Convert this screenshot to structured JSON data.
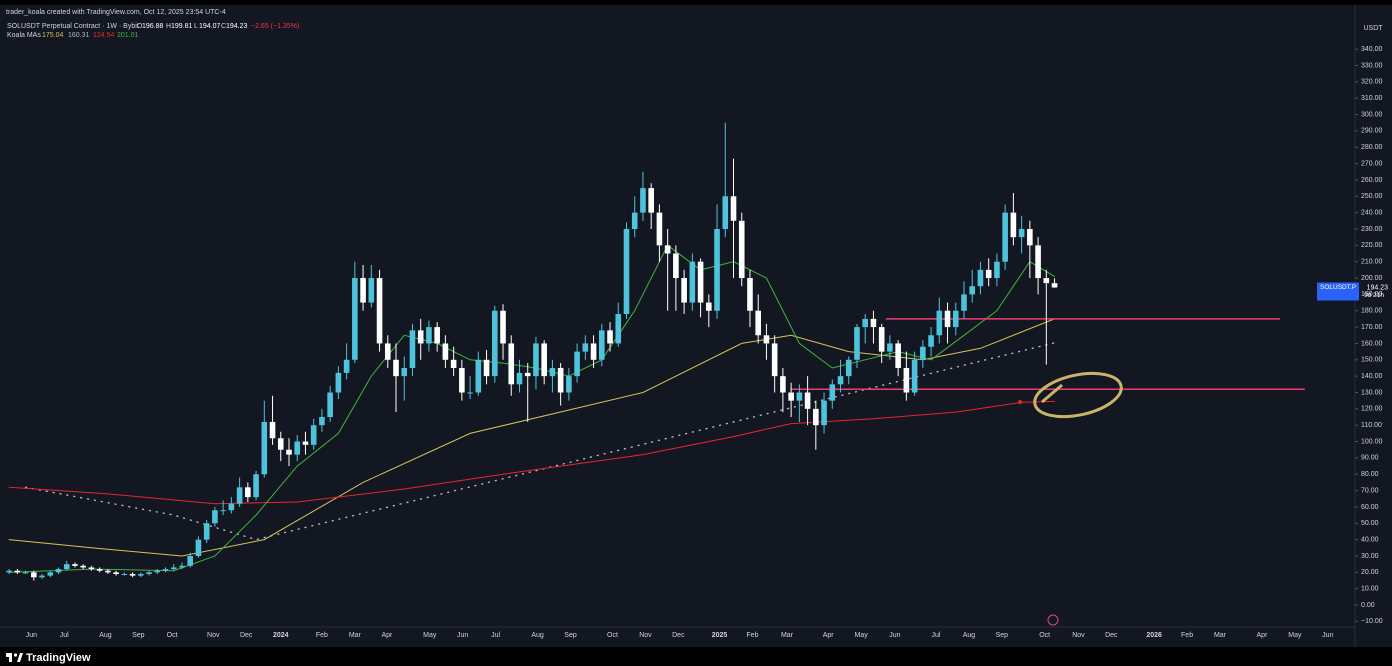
{
  "chart_data": {
    "type": "candlestick",
    "attribution": "trader_koala created with TradingView.com, Oct 12, 2025 23:54 UTC-4",
    "title": "SOLUSDT Perpetual Contract · 1W · Bybit",
    "ohlc_labels": [
      "O",
      "H",
      "L",
      "C"
    ],
    "change": "−2.65 (−1.35%)",
    "indicator": "Koala MAs",
    "currency": "USDT",
    "symbol": "SOLUSDT.P",
    "countdown": "9d 21h",
    "footer": "TradingView",
    "grid": false,
    "xlim": [
      -0.5,
      163.5
    ],
    "ylim": [
      -12.2,
      351.7
    ],
    "xticks": [
      {
        "value": 2.7,
        "label": "Jun"
      },
      {
        "value": 6.7,
        "label": "Jul"
      },
      {
        "value": 11.7,
        "label": "Aug"
      },
      {
        "value": 15.7,
        "label": "Sep"
      },
      {
        "value": 19.8,
        "label": "Oct"
      },
      {
        "value": 24.8,
        "label": "Nov"
      },
      {
        "value": 28.8,
        "label": "Dec"
      },
      {
        "value": 33.0,
        "label": "2024"
      },
      {
        "value": 38.0,
        "label": "Feb"
      },
      {
        "value": 42.0,
        "label": "Mar"
      },
      {
        "value": 45.9,
        "label": "Apr"
      },
      {
        "value": 51.1,
        "label": "May"
      },
      {
        "value": 55.1,
        "label": "Jun"
      },
      {
        "value": 59.1,
        "label": "Jul"
      },
      {
        "value": 64.2,
        "label": "Aug"
      },
      {
        "value": 68.2,
        "label": "Sep"
      },
      {
        "value": 73.3,
        "label": "Oct"
      },
      {
        "value": 77.3,
        "label": "Nov"
      },
      {
        "value": 81.3,
        "label": "Dec"
      },
      {
        "value": 86.3,
        "label": "2025"
      },
      {
        "value": 90.3,
        "label": "Feb"
      },
      {
        "value": 94.5,
        "label": "Mar"
      },
      {
        "value": 99.5,
        "label": "Apr"
      },
      {
        "value": 103.5,
        "label": "May"
      },
      {
        "value": 107.6,
        "label": "Jun"
      },
      {
        "value": 112.6,
        "label": "Jul"
      },
      {
        "value": 116.6,
        "label": "Aug"
      },
      {
        "value": 120.6,
        "label": "Sep"
      },
      {
        "value": 125.8,
        "label": "Oct"
      },
      {
        "value": 129.9,
        "label": "Nov"
      },
      {
        "value": 133.9,
        "label": "Dec"
      },
      {
        "value": 139.1,
        "label": "2026"
      },
      {
        "value": 143.1,
        "label": "Feb"
      },
      {
        "value": 147.1,
        "label": "Mar"
      },
      {
        "value": 152.2,
        "label": "Apr"
      },
      {
        "value": 156.2,
        "label": "May"
      },
      {
        "value": 160.2,
        "label": "Jun"
      }
    ],
    "yticks": [
      {
        "value": 340,
        "label": "340.00"
      },
      {
        "value": 330,
        "label": "330.00"
      },
      {
        "value": 320,
        "label": "320.00"
      },
      {
        "value": 310,
        "label": "310.00"
      },
      {
        "value": 300,
        "label": "300.00"
      },
      {
        "value": 290,
        "label": "290.00"
      },
      {
        "value": 280,
        "label": "280.00"
      },
      {
        "value": 270,
        "label": "270.00"
      },
      {
        "value": 260,
        "label": "260.00"
      },
      {
        "value": 250,
        "label": "250.00"
      },
      {
        "value": 240,
        "label": "240.00"
      },
      {
        "value": 230,
        "label": "230.00"
      },
      {
        "value": 220,
        "label": "220.00"
      },
      {
        "value": 210,
        "label": "210.00"
      },
      {
        "value": 200,
        "label": "200.00"
      },
      {
        "value": 190,
        "label": "190.00"
      },
      {
        "value": 180,
        "label": "180.00"
      },
      {
        "value": 170,
        "label": "170.00"
      },
      {
        "value": 160,
        "label": "160.00"
      },
      {
        "value": 150,
        "label": "150.00"
      },
      {
        "value": 140,
        "label": "140.00"
      },
      {
        "value": 130,
        "label": "130.00"
      },
      {
        "value": 120,
        "label": "120.00"
      },
      {
        "value": 110,
        "label": "110.00"
      },
      {
        "value": 100,
        "label": "100.00"
      },
      {
        "value": 90,
        "label": "90.00"
      },
      {
        "value": 80,
        "label": "80.00"
      },
      {
        "value": 70,
        "label": "70.00"
      },
      {
        "value": 60,
        "label": "60.00"
      },
      {
        "value": 50,
        "label": "50.00"
      },
      {
        "value": 40,
        "label": "40.00"
      },
      {
        "value": 30,
        "label": "30.00"
      },
      {
        "value": 20,
        "label": "20.00"
      },
      {
        "value": 10,
        "label": "10.00"
      },
      {
        "value": 0,
        "label": "0.00"
      },
      {
        "value": -10,
        "label": "−10.00"
      }
    ],
    "series": {
      "name": "SOLUSDT.P",
      "up_color": "#4fc3dc",
      "down_color": "#ffffff",
      "open": [
        20,
        21,
        20,
        20,
        17,
        18,
        20,
        22,
        25,
        24,
        23,
        22,
        21,
        20,
        19,
        19,
        18,
        19,
        20,
        21,
        22,
        23,
        24,
        30,
        40,
        50,
        58,
        58,
        62,
        72,
        66,
        80,
        112,
        102,
        95,
        92,
        100,
        98,
        110,
        115,
        130,
        142,
        150,
        200,
        185,
        200,
        160,
        150,
        140,
        145,
        168,
        160,
        170,
        160,
        150,
        145,
        130,
        130,
        150,
        140,
        180,
        160,
        135,
        142,
        140,
        160,
        140,
        145,
        130,
        140,
        155,
        160,
        150,
        168,
        160,
        178,
        230,
        240,
        255,
        240,
        220,
        215,
        200,
        185,
        210,
        185,
        180,
        230,
        250,
        235,
        200,
        180,
        165,
        160,
        140,
        130,
        125,
        130,
        120,
        110,
        125,
        135,
        140,
        150,
        170,
        175,
        170,
        155,
        160,
        145,
        130,
        150,
        158,
        165,
        180,
        170,
        180,
        190,
        195,
        205,
        200,
        210,
        240,
        225,
        230,
        220,
        200,
        196.88
      ],
      "high": [
        22,
        22,
        21,
        21,
        19,
        21,
        23,
        27,
        26,
        25,
        24,
        23,
        22,
        21,
        20,
        20,
        20,
        21,
        22,
        23,
        25,
        26,
        32,
        42,
        52,
        60,
        64,
        66,
        78,
        75,
        82,
        125,
        128,
        106,
        102,
        104,
        106,
        114,
        120,
        134,
        146,
        160,
        210,
        208,
        208,
        205,
        165,
        160,
        152,
        172,
        175,
        174,
        173,
        165,
        158,
        150,
        140,
        155,
        156,
        183,
        184,
        165,
        150,
        148,
        164,
        162,
        150,
        148,
        145,
        160,
        165,
        165,
        172,
        173,
        185,
        234,
        250,
        265,
        258,
        245,
        230,
        220,
        205,
        215,
        212,
        190,
        245,
        295,
        273,
        240,
        205,
        190,
        172,
        165,
        145,
        136,
        135,
        140,
        125,
        130,
        138,
        150,
        152,
        172,
        178,
        180,
        172,
        165,
        162,
        155,
        155,
        162,
        170,
        188,
        185,
        185,
        198,
        205,
        210,
        212,
        215,
        245,
        252,
        238,
        235,
        225,
        205,
        199.81
      ],
      "low": [
        19,
        19,
        19,
        15,
        16,
        17,
        19,
        21,
        23,
        22,
        21,
        20,
        19,
        18,
        18,
        17,
        17,
        18,
        19,
        20,
        21,
        22,
        23,
        29,
        38,
        48,
        55,
        56,
        60,
        63,
        64,
        78,
        98,
        88,
        85,
        88,
        92,
        95,
        106,
        112,
        126,
        138,
        148,
        180,
        182,
        155,
        145,
        118,
        125,
        140,
        150,
        155,
        155,
        145,
        140,
        125,
        126,
        128,
        135,
        136,
        150,
        128,
        130,
        112,
        132,
        135,
        130,
        122,
        125,
        136,
        150,
        145,
        146,
        155,
        158,
        175,
        225,
        235,
        230,
        210,
        180,
        180,
        178,
        180,
        176,
        170,
        175,
        225,
        200,
        195,
        170,
        160,
        150,
        130,
        118,
        115,
        112,
        110,
        95,
        105,
        120,
        130,
        135,
        145,
        160,
        160,
        148,
        150,
        140,
        125,
        128,
        145,
        152,
        160,
        160,
        165,
        175,
        185,
        190,
        195,
        195,
        205,
        220,
        215,
        200,
        190,
        147,
        194.07
      ],
      "close": [
        21,
        20,
        20,
        17,
        18,
        20,
        22,
        25,
        24,
        23,
        22,
        21,
        20,
        19,
        19,
        18,
        19,
        20,
        21,
        22,
        23,
        24,
        30,
        40,
        50,
        58,
        58,
        62,
        72,
        66,
        80,
        112,
        102,
        95,
        92,
        100,
        98,
        110,
        115,
        130,
        142,
        150,
        200,
        185,
        200,
        160,
        150,
        140,
        145,
        168,
        160,
        170,
        160,
        150,
        145,
        130,
        130,
        150,
        140,
        180,
        160,
        135,
        142,
        140,
        160,
        140,
        145,
        130,
        140,
        155,
        160,
        150,
        168,
        160,
        178,
        230,
        240,
        255,
        240,
        220,
        215,
        200,
        185,
        210,
        185,
        180,
        230,
        250,
        235,
        200,
        180,
        165,
        160,
        140,
        130,
        125,
        130,
        120,
        110,
        125,
        135,
        140,
        150,
        170,
        175,
        170,
        155,
        160,
        145,
        130,
        150,
        158,
        165,
        180,
        170,
        180,
        190,
        195,
        205,
        200,
        210,
        240,
        225,
        230,
        220,
        200,
        196.88,
        194.23
      ]
    },
    "moving_averages": [
      {
        "color": "#d8c25a",
        "style": "solid",
        "x": [
          0,
          10,
          21,
          31,
          43,
          56,
          77,
          89,
          95,
          102,
          111,
          118,
          127
        ],
        "values": [
          40,
          35,
          30,
          40,
          75,
          105,
          130,
          160,
          165,
          155,
          150,
          157,
          175.04
        ]
      },
      {
        "color": "#b2b5be",
        "style": "dotted",
        "x": [
          2,
          20,
          30,
          127
        ],
        "values": [
          72,
          55,
          40,
          160.31
        ]
      },
      {
        "color": "#e8262c",
        "style": "solid",
        "x": [
          0,
          12,
          25,
          35,
          48,
          60,
          77,
          88,
          95,
          105,
          115,
          123,
          127
        ],
        "values": [
          72,
          68,
          62,
          63,
          71,
          80,
          92,
          103,
          111,
          114,
          118,
          124,
          124.54
        ]
      },
      {
        "color": "#3fb43f",
        "style": "solid",
        "x": [
          0,
          10,
          20,
          25,
          30,
          35,
          40,
          44,
          48,
          52,
          56,
          60,
          64,
          68,
          72,
          76,
          80,
          84,
          88,
          92,
          96,
          100,
          104,
          108,
          112,
          116,
          120,
          124,
          127
        ],
        "values": [
          20,
          22,
          21,
          30,
          55,
          85,
          105,
          140,
          165,
          160,
          150,
          148,
          145,
          140,
          150,
          180,
          220,
          205,
          210,
          200,
          160,
          145,
          150,
          155,
          150,
          165,
          180,
          210,
          201.01
        ]
      }
    ],
    "levels": [
      {
        "value": 175,
        "x": [
          106.5,
          154.4
        ],
        "color": "#f23c6e"
      },
      {
        "value": 132,
        "x": [
          94.9,
          157.4
        ],
        "color": "#f23c6e"
      }
    ],
    "price_label_color": "#2962ff"
  }
}
